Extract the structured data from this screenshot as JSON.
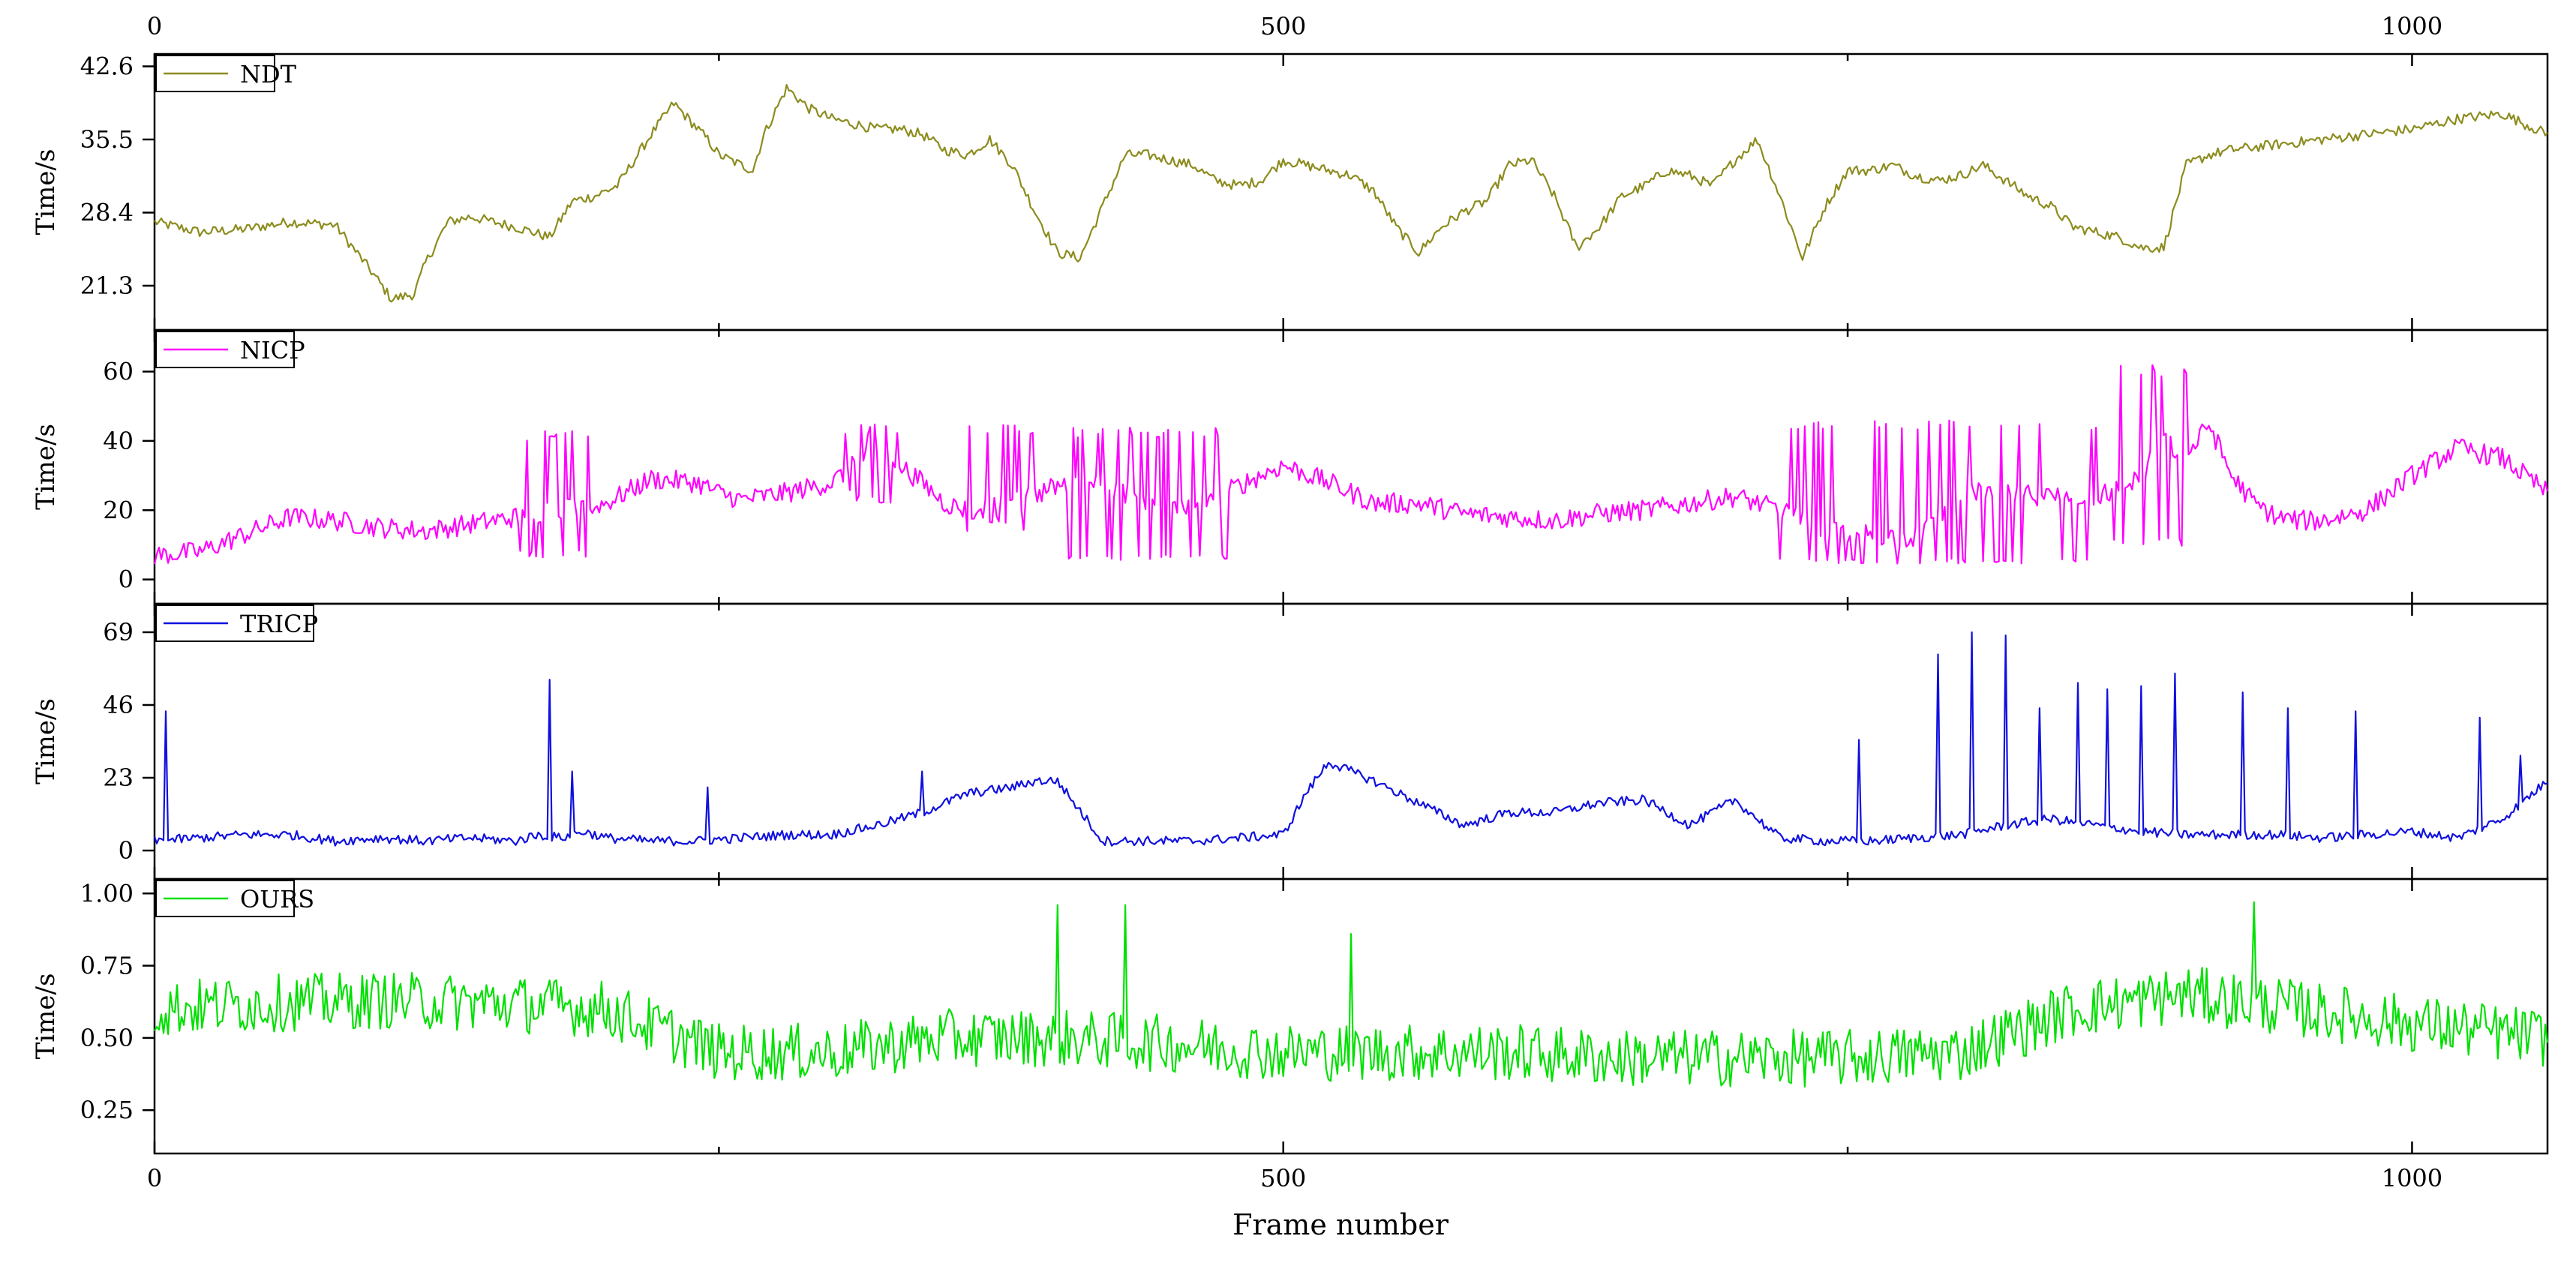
{
  "chart_data": {
    "type": "line",
    "x_axis": {
      "label": "Frame number",
      "range": [
        0,
        1060
      ],
      "ticks": [
        0,
        500,
        1000
      ],
      "tick_labels": [
        "0",
        "500",
        "1000"
      ],
      "top_tick_labels": [
        "0",
        "500",
        "1000"
      ],
      "minor_ticks": [
        250,
        750
      ]
    },
    "grid": false,
    "legend_placement": "top-left",
    "panels": [
      {
        "name": "NDT",
        "color": "#8c8c1e",
        "ylabel": "Time/s",
        "ylim": [
          17.0,
          43.8
        ],
        "yticks": [
          21.3,
          28.4,
          35.5,
          42.6
        ],
        "ytick_labels": [
          "21.3",
          "28.4",
          "35.5",
          "42.6"
        ],
        "noise": 0.5,
        "series": {
          "x": [
            0,
            20,
            40,
            60,
            80,
            95,
            105,
            115,
            120,
            130,
            140,
            160,
            175,
            185,
            195,
            205,
            220,
            230,
            245,
            250,
            260,
            265,
            270,
            280,
            290,
            300,
            310,
            320,
            330,
            340,
            350,
            360,
            370,
            380,
            390,
            400,
            410,
            420,
            430,
            440,
            450,
            460,
            470,
            480,
            490,
            500,
            510,
            520,
            530,
            540,
            550,
            560,
            570,
            580,
            590,
            600,
            610,
            620,
            630,
            640,
            650,
            660,
            670,
            680,
            690,
            700,
            710,
            720,
            730,
            740,
            750,
            760,
            770,
            780,
            790,
            800,
            810,
            820,
            830,
            840,
            850,
            860,
            870,
            880,
            890,
            900,
            910,
            920,
            940,
            960,
            980,
            1000,
            1020,
            1040,
            1060
          ],
          "y": [
            27.5,
            26.5,
            26.8,
            27.5,
            27.2,
            23.0,
            20.0,
            20.5,
            23.5,
            27.5,
            28.0,
            27.0,
            26.0,
            29.5,
            30.0,
            31.0,
            36.0,
            39.0,
            35.5,
            34.0,
            33.0,
            32.5,
            36.0,
            40.5,
            38.5,
            37.5,
            37.0,
            36.5,
            36.5,
            36.0,
            34.5,
            34.0,
            35.5,
            33.0,
            28.5,
            24.5,
            24.0,
            29.0,
            34.0,
            34.0,
            33.5,
            33.0,
            31.5,
            31.0,
            31.5,
            33.5,
            33.0,
            32.5,
            32.0,
            30.5,
            27.0,
            24.5,
            27.0,
            28.5,
            29.5,
            33.0,
            33.5,
            30.0,
            25.0,
            27.0,
            30.0,
            31.0,
            32.5,
            32.0,
            31.0,
            33.5,
            35.5,
            30.0,
            24.0,
            29.0,
            32.5,
            32.5,
            33.0,
            32.0,
            31.5,
            32.0,
            33.0,
            31.5,
            30.0,
            29.0,
            27.0,
            26.5,
            26.0,
            25.0,
            25.0,
            33.0,
            34.0,
            34.5,
            35.0,
            35.5,
            36.0,
            36.5,
            37.5,
            38.0,
            36.0
          ]
        }
      },
      {
        "name": "NICP",
        "color": "#ff00ff",
        "ylabel": "Time/s",
        "ylim": [
          -7,
          72
        ],
        "yticks": [
          0,
          20,
          40,
          60
        ],
        "ytick_labels": [
          "0",
          "20",
          "40",
          "60"
        ],
        "noise": 3,
        "series": {
          "x": [
            0,
            20,
            40,
            60,
            80,
            100,
            120,
            140,
            160,
            175,
            200,
            220,
            240,
            250,
            260,
            280,
            300,
            320,
            340,
            350,
            360,
            380,
            400,
            420,
            440,
            460,
            480,
            500,
            520,
            540,
            560,
            580,
            600,
            620,
            640,
            660,
            680,
            700,
            720,
            740,
            760,
            780,
            800,
            820,
            840,
            860,
            870,
            880,
            890,
            900,
            910,
            920,
            930,
            940,
            950,
            960,
            980,
            1000,
            1020,
            1040,
            1060
          ],
          "y": [
            7,
            8,
            13,
            18,
            17,
            15,
            14,
            16,
            18,
            20,
            22,
            29,
            28,
            25,
            23,
            25,
            28,
            38,
            28,
            22,
            20,
            22,
            27,
            28,
            22,
            20,
            27,
            33,
            28,
            22,
            22,
            19,
            18,
            17,
            19,
            20,
            22,
            24,
            20,
            14,
            13,
            12,
            25,
            25,
            24,
            24,
            26,
            30,
            40,
            35,
            45,
            30,
            22,
            18,
            17,
            17,
            20,
            30,
            38,
            35,
            25
          ]
        },
        "spike_regions": [
          {
            "x_range": [
              160,
              195
            ],
            "high": 43,
            "low": 7
          },
          {
            "x_range": [
              305,
              330
            ],
            "high": 45,
            "low": 22
          },
          {
            "x_range": [
              360,
              390
            ],
            "high": 45,
            "low": 15
          },
          {
            "x_range": [
              405,
              475
            ],
            "high": 44,
            "low": 6
          },
          {
            "x_range": [
              720,
              860
            ],
            "high": 46,
            "low": 5
          },
          {
            "x_range": [
              865,
              900
            ],
            "high": 62,
            "low": 10
          }
        ]
      },
      {
        "name": "TRICP",
        "color": "#1010e0",
        "ylabel": "Time/s",
        "ylim": [
          -9,
          78
        ],
        "yticks": [
          0,
          23,
          46,
          69
        ],
        "ytick_labels": [
          "0",
          "23",
          "46",
          "69"
        ],
        "noise": 1.5,
        "series": {
          "x": [
            0,
            20,
            40,
            60,
            80,
            100,
            120,
            140,
            160,
            170,
            180,
            190,
            200,
            220,
            240,
            260,
            280,
            300,
            320,
            340,
            360,
            380,
            390,
            400,
            420,
            440,
            460,
            480,
            500,
            510,
            520,
            540,
            560,
            580,
            600,
            620,
            640,
            660,
            680,
            700,
            720,
            740,
            760,
            780,
            800,
            820,
            840,
            860,
            880,
            900,
            920,
            940,
            960,
            980,
            1000,
            1020,
            1040,
            1060
          ],
          "y": [
            3,
            4,
            5,
            5,
            3,
            4,
            3,
            4,
            3,
            5,
            4,
            6,
            4,
            3,
            3,
            4,
            5,
            5,
            8,
            12,
            18,
            20,
            22,
            22,
            3,
            3,
            3,
            4,
            5,
            18,
            28,
            22,
            15,
            8,
            12,
            12,
            15,
            16,
            8,
            16,
            4,
            3,
            3,
            4,
            5,
            8,
            10,
            8,
            6,
            5,
            5,
            5,
            4,
            5,
            6,
            4,
            10,
            22
          ]
        },
        "spikes": [
          {
            "x": 5,
            "value": 44
          },
          {
            "x": 175,
            "value": 54
          },
          {
            "x": 185,
            "value": 25
          },
          {
            "x": 245,
            "value": 20
          },
          {
            "x": 340,
            "value": 25
          },
          {
            "x": 755,
            "value": 35
          },
          {
            "x": 790,
            "value": 62
          },
          {
            "x": 805,
            "value": 69
          },
          {
            "x": 820,
            "value": 68
          },
          {
            "x": 835,
            "value": 45
          },
          {
            "x": 852,
            "value": 53
          },
          {
            "x": 865,
            "value": 51
          },
          {
            "x": 880,
            "value": 52
          },
          {
            "x": 895,
            "value": 56
          },
          {
            "x": 925,
            "value": 50
          },
          {
            "x": 945,
            "value": 45
          },
          {
            "x": 975,
            "value": 44
          },
          {
            "x": 1030,
            "value": 42
          },
          {
            "x": 1048,
            "value": 30
          }
        ]
      },
      {
        "name": "OURS",
        "color": "#00e000",
        "ylabel": "Time/s",
        "ylim": [
          0.1,
          1.05
        ],
        "yticks": [
          0.25,
          0.5,
          0.75,
          1.0
        ],
        "ytick_labels": [
          "0.25",
          "0.50",
          "0.75",
          "1.00"
        ],
        "noise": 0.1,
        "series": {
          "x": [
            0,
            50,
            100,
            150,
            200,
            250,
            300,
            350,
            400,
            450,
            500,
            550,
            600,
            650,
            700,
            750,
            800,
            850,
            900,
            950,
            1000,
            1060
          ],
          "y": [
            0.6,
            0.62,
            0.63,
            0.62,
            0.6,
            0.45,
            0.45,
            0.5,
            0.5,
            0.48,
            0.45,
            0.45,
            0.45,
            0.43,
            0.43,
            0.43,
            0.45,
            0.6,
            0.65,
            0.6,
            0.55,
            0.5
          ]
        },
        "spikes": [
          {
            "x": 400,
            "value": 0.96
          },
          {
            "x": 430,
            "value": 0.96
          },
          {
            "x": 530,
            "value": 0.86
          },
          {
            "x": 930,
            "value": 0.97
          }
        ]
      }
    ]
  }
}
